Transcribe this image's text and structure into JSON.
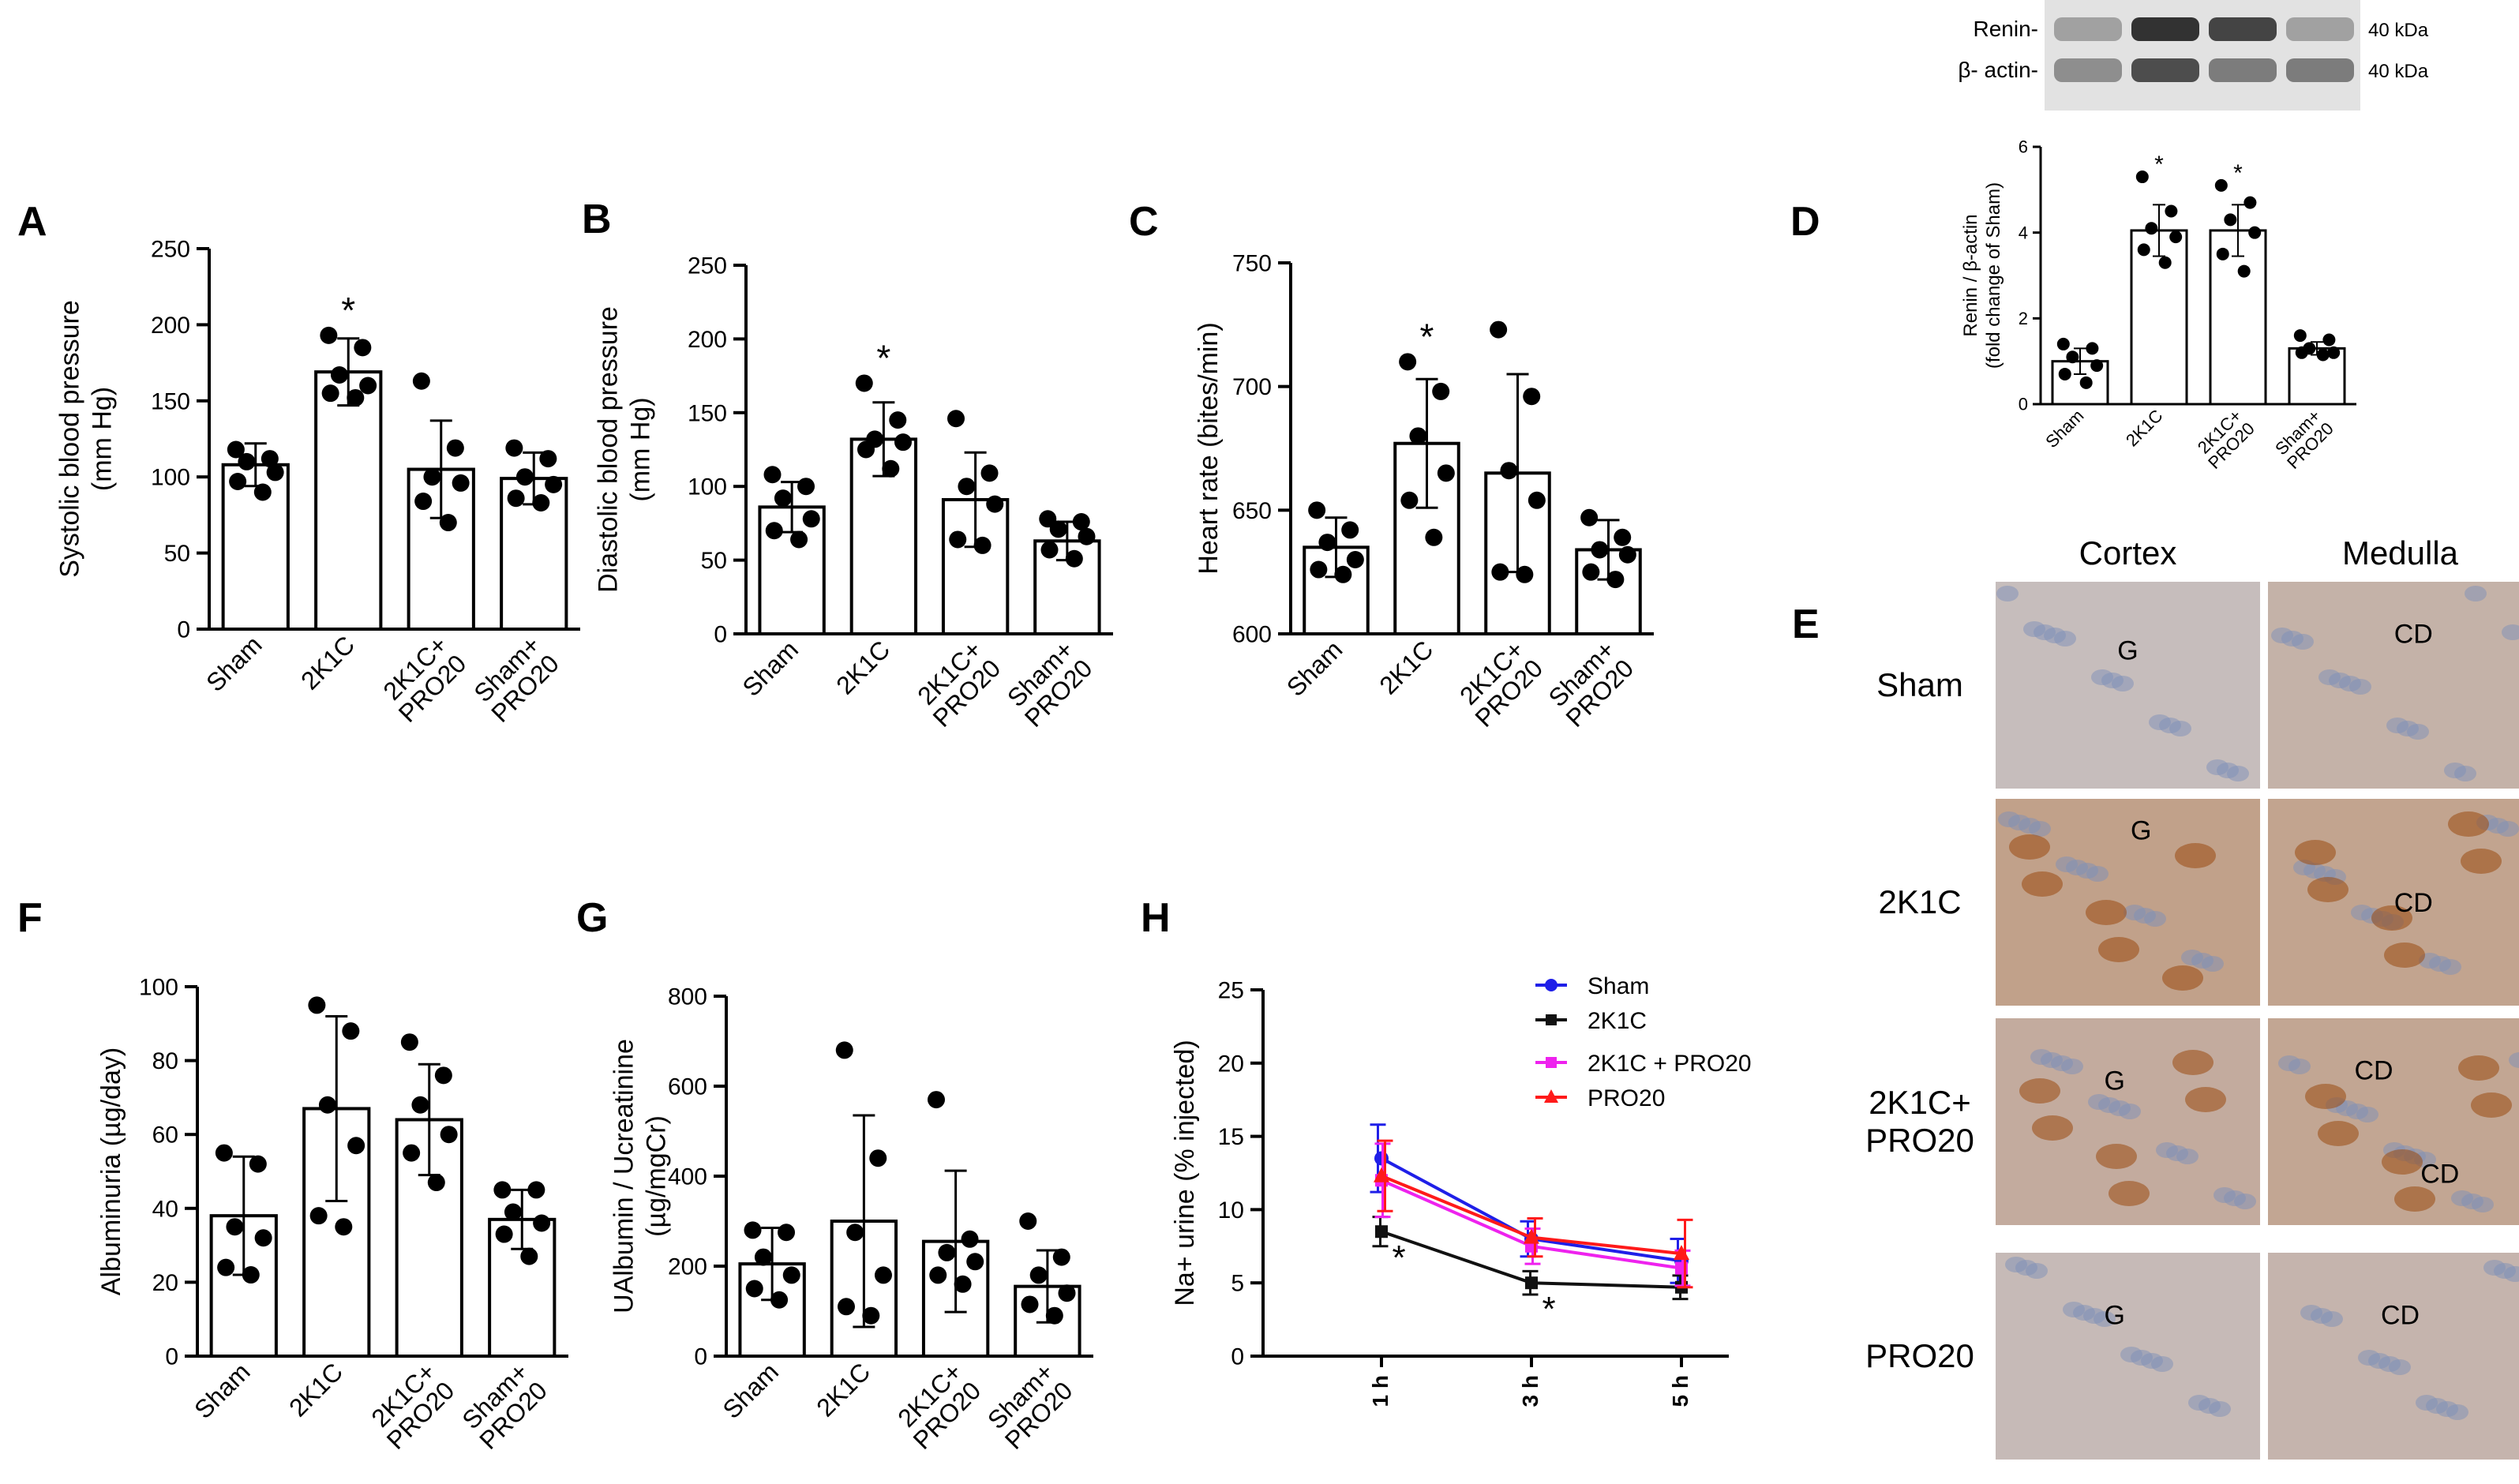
{
  "chart_data": [
    {
      "id": "A",
      "type": "bar",
      "panel_label": "A",
      "ylabel": "Systolic blood pressure\n(mm Hg)",
      "ylim": [
        0,
        250
      ],
      "yticks": [
        0,
        50,
        100,
        150,
        200,
        250
      ],
      "categories": [
        "Sham",
        "2K1C",
        "2K1C+\nPRO20",
        "Sham+\nPRO20"
      ],
      "values": [
        108,
        169,
        105,
        99
      ],
      "errors": [
        14,
        22,
        32,
        17
      ],
      "points": [
        [
          118,
          112,
          110,
          103,
          97,
          90
        ],
        [
          193,
          185,
          167,
          160,
          155,
          152
        ],
        [
          163,
          119,
          100,
          96,
          84,
          70
        ],
        [
          119,
          112,
          100,
          95,
          86,
          83
        ]
      ],
      "significance": [
        "",
        "*",
        "",
        ""
      ]
    },
    {
      "id": "B",
      "type": "bar",
      "panel_label": "B",
      "ylabel": "Diastolic blood pressure\n(mm Hg)",
      "ylim": [
        0,
        250
      ],
      "yticks": [
        0,
        50,
        100,
        150,
        200,
        250
      ],
      "categories": [
        "Sham",
        "2K1C",
        "2K1C+\nPRO20",
        "Sham+\nPRO20"
      ],
      "values": [
        86,
        132,
        91,
        63
      ],
      "errors": [
        17,
        25,
        32,
        13
      ],
      "points": [
        [
          108,
          100,
          92,
          78,
          70,
          64
        ],
        [
          170,
          145,
          132,
          130,
          125,
          112
        ],
        [
          146,
          109,
          100,
          88,
          64,
          60
        ],
        [
          78,
          76,
          71,
          66,
          57,
          51
        ]
      ],
      "significance": [
        "",
        "*",
        "",
        ""
      ]
    },
    {
      "id": "C",
      "type": "bar",
      "panel_label": "C",
      "ylabel": "Heart rate (bites/min)",
      "ylim": [
        600,
        750
      ],
      "yticks": [
        600,
        650,
        700,
        750
      ],
      "categories": [
        "Sham",
        "2K1C",
        "2K1C+\nPRO20",
        "Sham+\nPRO20"
      ],
      "values": [
        635,
        677,
        665,
        634
      ],
      "errors": [
        12,
        26,
        40,
        12
      ],
      "points": [
        [
          650,
          642,
          637,
          630,
          626,
          624
        ],
        [
          710,
          698,
          680,
          665,
          654,
          639
        ],
        [
          723,
          696,
          666,
          654,
          625,
          624
        ],
        [
          647,
          639,
          634,
          632,
          625,
          622
        ]
      ],
      "significance": [
        "",
        "*",
        "",
        ""
      ]
    },
    {
      "id": "D",
      "type": "bar",
      "panel_label": "D",
      "ylabel": "Renin / β-actin\n(fold change of Sham)",
      "ylim": [
        0,
        6
      ],
      "yticks": [
        0,
        2,
        4,
        6
      ],
      "categories": [
        "Sham",
        "2K1C",
        "2K1C+\nPRO20",
        "Sham+\nPRO20"
      ],
      "values": [
        1.0,
        4.05,
        4.05,
        1.3
      ],
      "errors": [
        0.3,
        0.6,
        0.6,
        0.15
      ],
      "points": [
        [
          1.4,
          1.3,
          1.1,
          0.9,
          0.7,
          0.5
        ],
        [
          5.3,
          4.5,
          4.1,
          3.9,
          3.6,
          3.3
        ],
        [
          5.1,
          4.7,
          4.3,
          4.0,
          3.5,
          3.1
        ],
        [
          1.6,
          1.5,
          1.3,
          1.2,
          1.2,
          1.15
        ]
      ],
      "significance": [
        "",
        "*",
        "*",
        ""
      ]
    },
    {
      "id": "F",
      "type": "bar",
      "panel_label": "F",
      "ylabel": "Albuminuria (µg/day)",
      "ylim": [
        0,
        100
      ],
      "yticks": [
        0,
        20,
        40,
        60,
        80,
        100
      ],
      "categories": [
        "Sham",
        "2K1C",
        "2K1C+\nPRO20",
        "Sham+\nPRO20"
      ],
      "values": [
        38,
        67,
        64,
        37
      ],
      "errors": [
        16,
        25,
        15,
        8
      ],
      "points": [
        [
          55,
          52,
          35,
          32,
          24,
          22
        ],
        [
          95,
          88,
          68,
          57,
          38,
          35
        ],
        [
          85,
          76,
          68,
          60,
          55,
          47
        ],
        [
          45,
          45,
          39,
          36,
          33,
          27
        ]
      ],
      "significance": [
        "",
        "",
        "",
        ""
      ]
    },
    {
      "id": "G",
      "type": "bar",
      "panel_label": "G",
      "ylabel": "UAlbumin / Ucreatinine\n(µg/mgCr)",
      "ylim": [
        0,
        800
      ],
      "yticks": [
        0,
        200,
        400,
        600,
        800
      ],
      "categories": [
        "Sham",
        "2K1C",
        "2K1C+\nPRO20",
        "Sham+\nPRO20"
      ],
      "values": [
        205,
        300,
        255,
        155
      ],
      "errors": [
        80,
        235,
        157,
        80
      ],
      "points": [
        [
          280,
          275,
          220,
          180,
          150,
          125
        ],
        [
          680,
          440,
          275,
          180,
          110,
          90
        ],
        [
          570,
          260,
          230,
          210,
          180,
          160
        ],
        [
          300,
          220,
          180,
          140,
          115,
          90
        ]
      ],
      "significance": [
        "",
        "",
        "",
        ""
      ]
    },
    {
      "id": "H",
      "type": "line",
      "panel_label": "H",
      "ylabel": "Na+ urine (% injected)",
      "ylim": [
        0,
        25
      ],
      "yticks": [
        0,
        5,
        10,
        15,
        20,
        25
      ],
      "x": [
        "1 h",
        "3 h",
        "5 h"
      ],
      "series": [
        {
          "name": "Sham",
          "color": "#1f1fe8",
          "marker": "circle",
          "values": [
            13.5,
            8.0,
            6.5
          ],
          "errors": [
            2.3,
            1.2,
            1.5
          ]
        },
        {
          "name": "2K1C",
          "color": "#111111",
          "marker": "square",
          "values": [
            8.5,
            5.0,
            4.7
          ],
          "errors": [
            1.0,
            0.8,
            0.8
          ]
        },
        {
          "name": "2K1C + PRO20",
          "color": "#ee22ee",
          "marker": "square",
          "values": [
            12.0,
            7.5,
            6.0
          ],
          "errors": [
            2.5,
            1.2,
            1.2
          ]
        },
        {
          "name": "PRO20",
          "color": "#ff1a1a",
          "marker": "triangle",
          "values": [
            12.3,
            8.1,
            7.0
          ],
          "errors": [
            2.4,
            1.3,
            2.3
          ]
        }
      ],
      "significance": [
        {
          "x": "1 h",
          "label": "*"
        },
        {
          "x": "3 h",
          "label": "*"
        }
      ]
    }
  ],
  "blot": {
    "rows": [
      "Renin-",
      "β- actin-"
    ],
    "sizes": [
      "40 kDa",
      "40 kDa"
    ]
  },
  "histology": {
    "panel_label": "E",
    "columns": [
      "Cortex",
      "Medulla"
    ],
    "rows": [
      "Sham",
      "2K1C",
      "2K1C+\nPRO20",
      "PRO20"
    ],
    "markers": [
      [
        "G",
        "CD"
      ],
      [
        "G",
        "CD"
      ],
      [
        "G",
        "CD",
        "CD"
      ],
      [
        "G",
        "CD"
      ]
    ],
    "colors": {
      "background": "#c9cbd6",
      "stain": "#b5651d",
      "nuclei": "#7d8fb8"
    }
  }
}
